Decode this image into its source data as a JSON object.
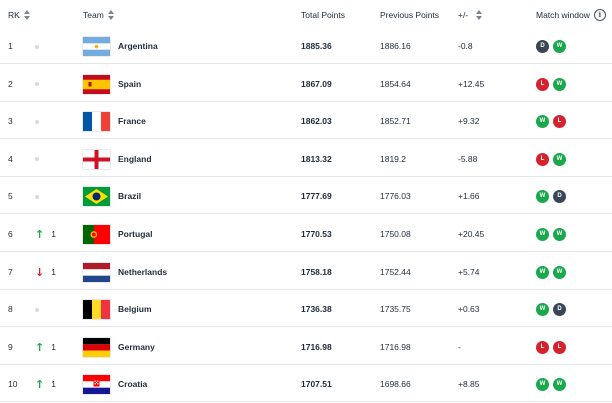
{
  "header": {
    "rk": "RK",
    "team": "Team",
    "total": "Total Points",
    "previous": "Previous Points",
    "diff": "+/-",
    "window": "Match window",
    "info_glyph": "i"
  },
  "colors": {
    "win": "#1aa84c",
    "loss": "#d4232f",
    "draw": "#3a4656",
    "up": "#1aa84c",
    "down": "#d4232f"
  },
  "rows": [
    {
      "rank": "1",
      "move": "none",
      "move_num": "",
      "team": "Argentina",
      "flag": "argentina",
      "total": "1885.36",
      "previous": "1886.16",
      "diff": "-0.8",
      "window": [
        "D",
        "W"
      ]
    },
    {
      "rank": "2",
      "move": "none",
      "move_num": "",
      "team": "Spain",
      "flag": "spain",
      "total": "1867.09",
      "previous": "1854.64",
      "diff": "+12.45",
      "window": [
        "L",
        "W"
      ]
    },
    {
      "rank": "3",
      "move": "none",
      "move_num": "",
      "team": "France",
      "flag": "france",
      "total": "1862.03",
      "previous": "1852.71",
      "diff": "+9.32",
      "window": [
        "W",
        "L"
      ]
    },
    {
      "rank": "4",
      "move": "none",
      "move_num": "",
      "team": "England",
      "flag": "england",
      "total": "1813.32",
      "previous": "1819.2",
      "diff": "-5.88",
      "window": [
        "L",
        "W"
      ]
    },
    {
      "rank": "5",
      "move": "none",
      "move_num": "",
      "team": "Brazil",
      "flag": "brazil",
      "total": "1777.69",
      "previous": "1776.03",
      "diff": "+1.66",
      "window": [
        "W",
        "D"
      ]
    },
    {
      "rank": "6",
      "move": "up",
      "move_num": "1",
      "team": "Portugal",
      "flag": "portugal",
      "total": "1770.53",
      "previous": "1750.08",
      "diff": "+20.45",
      "window": [
        "W",
        "W"
      ]
    },
    {
      "rank": "7",
      "move": "down",
      "move_num": "1",
      "team": "Netherlands",
      "flag": "netherlands",
      "total": "1758.18",
      "previous": "1752.44",
      "diff": "+5.74",
      "window": [
        "W",
        "W"
      ]
    },
    {
      "rank": "8",
      "move": "none",
      "move_num": "",
      "team": "Belgium",
      "flag": "belgium",
      "total": "1736.38",
      "previous": "1735.75",
      "diff": "+0.63",
      "window": [
        "W",
        "D"
      ]
    },
    {
      "rank": "9",
      "move": "up",
      "move_num": "1",
      "team": "Germany",
      "flag": "germany",
      "total": "1716.98",
      "previous": "1716.98",
      "diff": "-",
      "window": [
        "L",
        "L"
      ]
    },
    {
      "rank": "10",
      "move": "up",
      "move_num": "1",
      "team": "Croatia",
      "flag": "croatia",
      "total": "1707.51",
      "previous": "1698.66",
      "diff": "+8.85",
      "window": [
        "W",
        "W"
      ]
    }
  ]
}
